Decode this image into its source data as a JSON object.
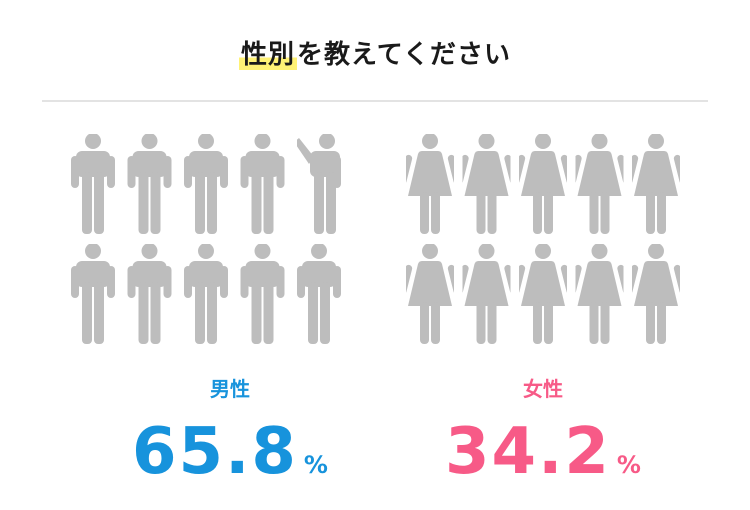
{
  "title": {
    "highlight": "性別",
    "rest": "を教えてください"
  },
  "colors": {
    "male": "#1793dc",
    "female": "#f75a87",
    "empty": "#bdbdbd",
    "highlight": "#fff275"
  },
  "chart_data": {
    "type": "pictograph",
    "icons_per_group": 10,
    "series": [
      {
        "name": "男性",
        "value": 65.8,
        "unit": "%",
        "color": "#1793dc",
        "icon": "male-person-icon"
      },
      {
        "name": "女性",
        "value": 34.2,
        "unit": "%",
        "color": "#f75a87",
        "icon": "female-person-icon"
      }
    ]
  },
  "male": {
    "label": "男性",
    "value": "65.8",
    "unit": "%"
  },
  "female": {
    "label": "女性",
    "value": "34.2",
    "unit": "%"
  }
}
